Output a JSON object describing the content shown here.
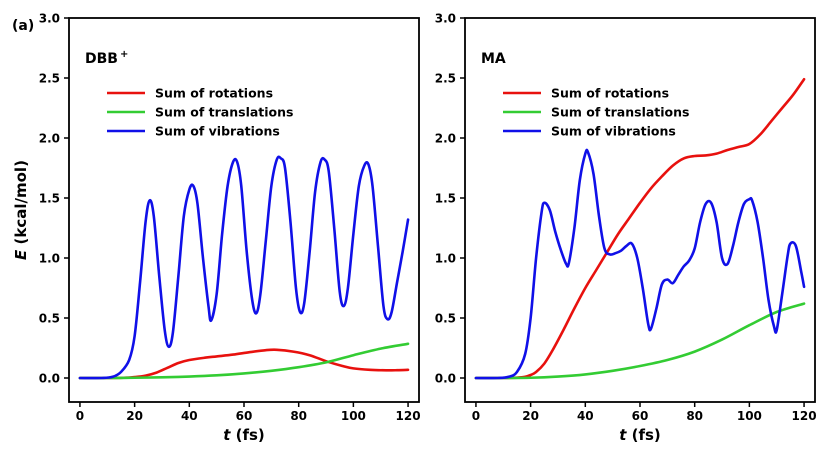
{
  "chart_data": [
    {
      "type": "line",
      "panel_label": "(a)",
      "title": "DBB",
      "title_superscript": "+",
      "xlabel_var": "t",
      "xlabel_unit": " (fs)",
      "ylabel_var": "E",
      "ylabel_unit": " (kcal/mol)",
      "xlim": [
        -4,
        124
      ],
      "ylim": [
        -0.2,
        3.0
      ],
      "xticks": [
        0,
        20,
        40,
        60,
        80,
        100,
        120
      ],
      "yticks": [
        0.0,
        0.5,
        1.0,
        1.5,
        2.0,
        2.5,
        3.0
      ],
      "ytick_labels": [
        "0.0",
        "0.5",
        "1.0",
        "1.5",
        "2.0",
        "2.5",
        "3.0"
      ],
      "series": [
        {
          "name": "Sum of rotations",
          "color": "#e8110e",
          "x": [
            0,
            10,
            16,
            20,
            24,
            28,
            32,
            36,
            40,
            46,
            50,
            56,
            62,
            68,
            72,
            78,
            84,
            90,
            96,
            100,
            106,
            112,
            116,
            120
          ],
          "y": [
            0,
            0,
            0.002,
            0.008,
            0.02,
            0.045,
            0.085,
            0.125,
            0.15,
            0.17,
            0.18,
            0.195,
            0.215,
            0.232,
            0.235,
            0.22,
            0.19,
            0.14,
            0.1,
            0.08,
            0.068,
            0.064,
            0.065,
            0.068
          ]
        },
        {
          "name": "Sum of translations",
          "color": "#33cc33",
          "x": [
            0,
            10,
            20,
            30,
            40,
            50,
            60,
            70,
            80,
            90,
            100,
            110,
            120
          ],
          "y": [
            0,
            0,
            0.002,
            0.006,
            0.012,
            0.022,
            0.038,
            0.06,
            0.09,
            0.13,
            0.19,
            0.245,
            0.285
          ]
        },
        {
          "name": "Sum of vibrations",
          "color": "#1010e8",
          "x": [
            0,
            8,
            12,
            15,
            18,
            20,
            22,
            24,
            25.5,
            27,
            29,
            31,
            32.5,
            34,
            36,
            38,
            40,
            41.5,
            43,
            45,
            47,
            48,
            50,
            52,
            54,
            56,
            57.5,
            59,
            61,
            63,
            64.5,
            66,
            68,
            70,
            72,
            73.5,
            75,
            77,
            79,
            80.5,
            82,
            84,
            86,
            88,
            89.5,
            91,
            93,
            95,
            96.5,
            98,
            100,
            102,
            104,
            105.5,
            107,
            109,
            111,
            112.5,
            114,
            116,
            118,
            120
          ],
          "y": [
            0,
            0,
            0.01,
            0.05,
            0.15,
            0.35,
            0.8,
            1.3,
            1.48,
            1.35,
            0.85,
            0.4,
            0.26,
            0.38,
            0.85,
            1.35,
            1.57,
            1.6,
            1.45,
            1.0,
            0.6,
            0.48,
            0.7,
            1.2,
            1.6,
            1.8,
            1.8,
            1.6,
            1.05,
            0.65,
            0.54,
            0.7,
            1.15,
            1.6,
            1.82,
            1.83,
            1.75,
            1.3,
            0.75,
            0.55,
            0.62,
            1.05,
            1.55,
            1.8,
            1.82,
            1.72,
            1.25,
            0.72,
            0.6,
            0.75,
            1.2,
            1.6,
            1.77,
            1.78,
            1.6,
            1.1,
            0.6,
            0.49,
            0.55,
            0.8,
            1.05,
            1.32
          ]
        }
      ]
    },
    {
      "type": "line",
      "title": "MA",
      "xlabel_var": "t",
      "xlabel_unit": " (fs)",
      "xlim": [
        -4,
        124
      ],
      "ylim": [
        -0.2,
        3.0
      ],
      "xticks": [
        0,
        20,
        40,
        60,
        80,
        100,
        120
      ],
      "yticks": [
        0.0,
        0.5,
        1.0,
        1.5,
        2.0,
        2.5,
        3.0
      ],
      "ytick_labels": [
        "0.0",
        "0.5",
        "1.0",
        "1.5",
        "2.0",
        "2.5",
        "3.0"
      ],
      "series": [
        {
          "name": "Sum of rotations",
          "color": "#e8110e",
          "x": [
            0,
            10,
            15,
            18,
            20,
            22,
            25,
            28,
            32,
            36,
            40,
            44,
            48,
            52,
            56,
            60,
            64,
            68,
            72,
            76,
            80,
            84,
            88,
            92,
            96,
            100,
            104,
            108,
            112,
            116,
            120
          ],
          "y": [
            0,
            0,
            0.003,
            0.01,
            0.025,
            0.05,
            0.12,
            0.23,
            0.4,
            0.58,
            0.75,
            0.9,
            1.05,
            1.2,
            1.33,
            1.46,
            1.58,
            1.68,
            1.77,
            1.83,
            1.85,
            1.855,
            1.87,
            1.9,
            1.925,
            1.95,
            2.03,
            2.14,
            2.25,
            2.36,
            2.49
          ]
        },
        {
          "name": "Sum of translations",
          "color": "#33cc33",
          "x": [
            0,
            10,
            20,
            30,
            40,
            50,
            60,
            70,
            80,
            90,
            100,
            110,
            120
          ],
          "y": [
            0,
            0,
            0.002,
            0.012,
            0.03,
            0.06,
            0.1,
            0.15,
            0.22,
            0.32,
            0.44,
            0.55,
            0.62
          ]
        },
        {
          "name": "Sum of vibrations",
          "color": "#1010e8",
          "x": [
            0,
            8,
            12,
            15,
            18,
            20,
            22,
            24,
            25,
            27,
            29,
            31,
            33,
            34,
            36,
            38,
            40,
            41,
            43,
            45,
            47,
            49,
            51,
            53,
            55,
            57,
            59,
            61,
            63,
            64,
            66,
            68,
            70,
            72,
            74,
            76,
            78,
            80,
            82,
            84,
            86,
            88,
            90,
            92,
            94,
            96,
            98,
            100,
            101,
            103,
            105,
            107,
            109,
            110,
            112,
            114,
            115,
            117,
            119,
            120
          ],
          "y": [
            0,
            0,
            0.01,
            0.05,
            0.2,
            0.5,
            1.0,
            1.38,
            1.46,
            1.4,
            1.22,
            1.07,
            0.95,
            0.96,
            1.25,
            1.65,
            1.87,
            1.88,
            1.7,
            1.35,
            1.08,
            1.03,
            1.04,
            1.06,
            1.1,
            1.12,
            1.0,
            0.75,
            0.45,
            0.41,
            0.58,
            0.78,
            0.82,
            0.79,
            0.86,
            0.93,
            0.98,
            1.08,
            1.3,
            1.45,
            1.46,
            1.3,
            1.0,
            0.95,
            1.1,
            1.3,
            1.45,
            1.49,
            1.48,
            1.3,
            1.0,
            0.65,
            0.43,
            0.4,
            0.7,
            1.02,
            1.12,
            1.1,
            0.88,
            0.76
          ]
        }
      ]
    }
  ]
}
